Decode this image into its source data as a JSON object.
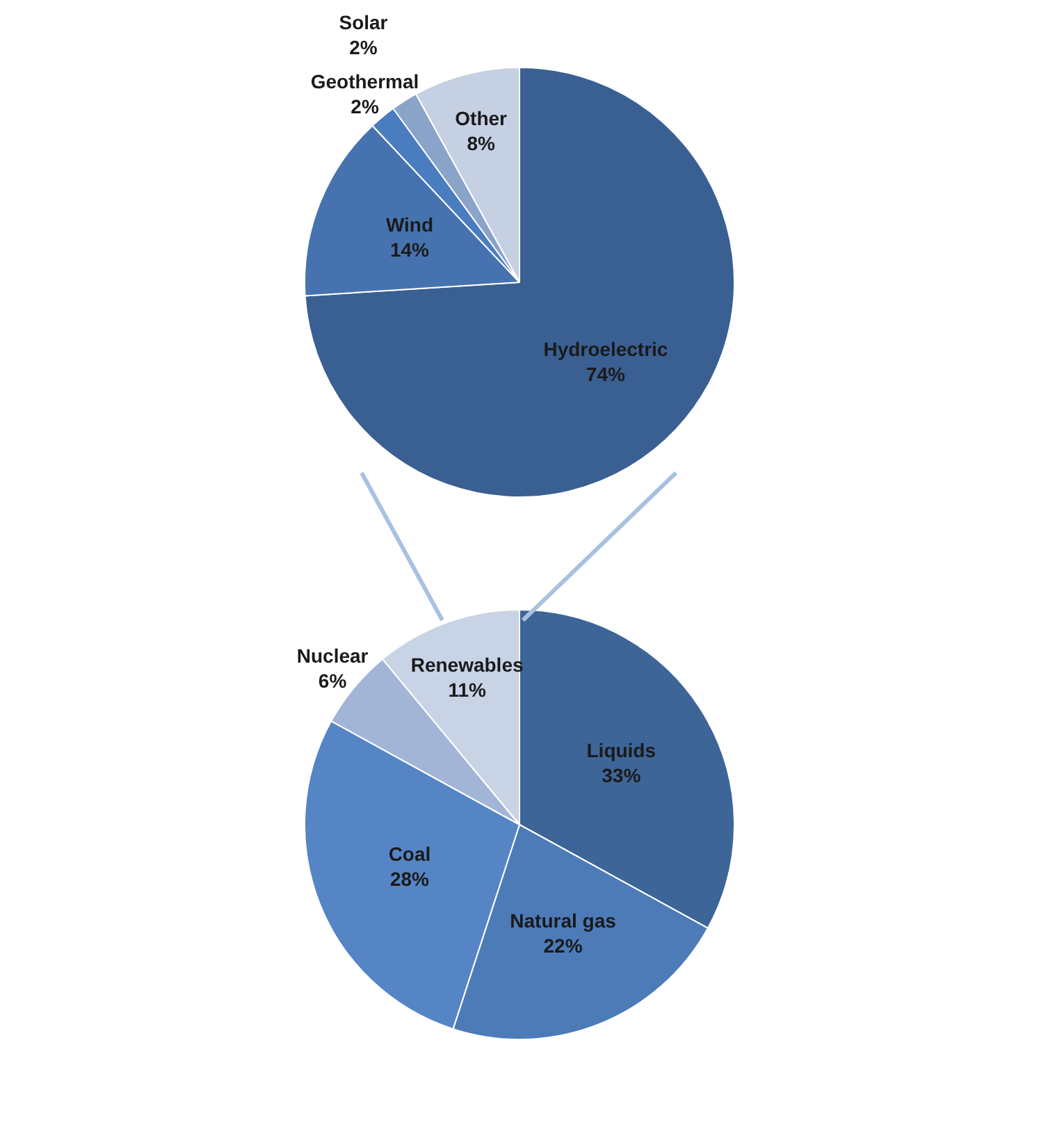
{
  "chart_data": [
    {
      "type": "pie",
      "categories": [
        "Hydroelectric",
        "Wind",
        "Geothermal",
        "Solar",
        "Other"
      ],
      "values": [
        74,
        14,
        2,
        2,
        8
      ],
      "value_labels": [
        "74%",
        "14%",
        "2%",
        "2%",
        "8%"
      ],
      "colors": [
        "#3a5f92",
        "#4673b0",
        "#4a7cc0",
        "#8aa3c8",
        "#c5d0e3"
      ],
      "legend": false
    },
    {
      "type": "pie",
      "categories": [
        "Liquids",
        "Natural gas",
        "Coal",
        "Nuclear",
        "Renewables"
      ],
      "values": [
        33,
        22,
        28,
        6,
        11
      ],
      "value_labels": [
        "33%",
        "22%",
        "28%",
        "6%",
        "11%"
      ],
      "colors": [
        "#3d6597",
        "#4d7bb8",
        "#5585c5",
        "#a3b5d6",
        "#c8d3e6"
      ],
      "legend": false
    }
  ]
}
